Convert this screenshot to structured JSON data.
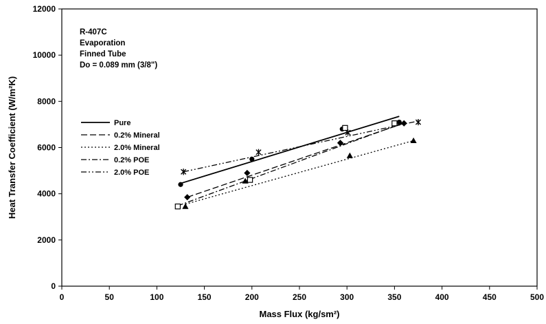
{
  "chart_data": {
    "type": "scatter",
    "title": "",
    "xlabel": "Mass Flux (kg/sm²)",
    "ylabel": "Heat Transfer Coefficient (W/m²K)",
    "xlim": [
      0,
      500
    ],
    "ylim": [
      0,
      12000
    ],
    "x_ticks": [
      0,
      50,
      100,
      150,
      200,
      250,
      300,
      350,
      400,
      450,
      500
    ],
    "y_ticks": [
      0,
      2000,
      4000,
      6000,
      8000,
      10000,
      12000
    ],
    "grid": false,
    "legend_position": "center-left",
    "annotation_lines": [
      "R-407C",
      "Evaporation",
      "Finned Tube",
      "Do = 0.089 mm (3/8\")"
    ],
    "series": [
      {
        "name": "Pure",
        "dash": "solid",
        "marker": "circle",
        "points": [
          [
            125,
            4400
          ],
          [
            200,
            5500
          ],
          [
            295,
            6800
          ],
          [
            355,
            7100
          ]
        ],
        "fit": [
          [
            125,
            4450
          ],
          [
            355,
            7350
          ]
        ]
      },
      {
        "name": "0.2% Mineral",
        "dash": "dashed",
        "marker": "diamond",
        "points": [
          [
            132,
            3850
          ],
          [
            195,
            4900
          ],
          [
            293,
            6200
          ],
          [
            360,
            7050
          ]
        ],
        "fit": [
          [
            132,
            3850
          ],
          [
            360,
            7050
          ]
        ]
      },
      {
        "name": "2.0% Mineral",
        "dash": "dotted",
        "marker": "triangle",
        "points": [
          [
            130,
            3450
          ],
          [
            193,
            4550
          ],
          [
            303,
            5650
          ],
          [
            370,
            6300
          ]
        ],
        "fit": [
          [
            130,
            3550
          ],
          [
            370,
            6300
          ]
        ]
      },
      {
        "name": "0.2% POE",
        "dash": "dashdot",
        "marker": "square",
        "points": [
          [
            122,
            3450
          ],
          [
            198,
            4600
          ],
          [
            298,
            6850
          ],
          [
            350,
            7050
          ]
        ],
        "fit": [
          [
            122,
            3480
          ],
          [
            355,
            7000
          ]
        ]
      },
      {
        "name": "2.0% POE",
        "dash": "dashdotdot",
        "marker": "star",
        "points": [
          [
            128,
            4950
          ],
          [
            207,
            5800
          ],
          [
            301,
            6650
          ],
          [
            375,
            7100
          ]
        ],
        "fit": [
          [
            128,
            4950
          ],
          [
            375,
            7150
          ]
        ]
      }
    ]
  }
}
